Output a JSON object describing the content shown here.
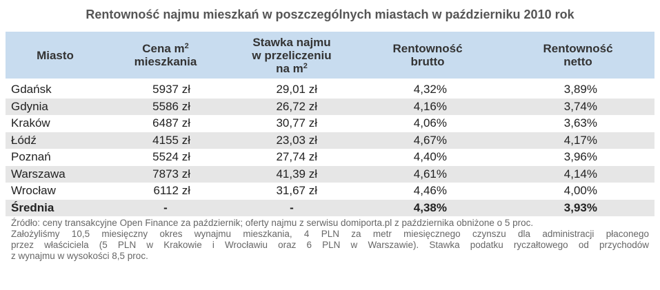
{
  "title": "Rentowność najmu mieszkań w poszczególnych miastach w październiku 2010 rok",
  "table": {
    "header": [
      [
        {
          "text": "Miasto"
        }
      ],
      [
        {
          "text": "Cena m",
          "sup": "2"
        },
        {
          "text": "mieszkania"
        }
      ],
      [
        {
          "text": "Stawka najmu"
        },
        {
          "text": "w przeliczeniu"
        },
        {
          "text": "na m",
          "sup": "2"
        }
      ],
      [
        {
          "text": "Rentowność"
        },
        {
          "text": "brutto"
        }
      ],
      [
        {
          "text": "Rentowność"
        },
        {
          "text": "netto"
        }
      ]
    ],
    "rows": [
      [
        "Gdańsk",
        "5937 zł",
        "29,01 zł",
        "4,32%",
        "3,89%"
      ],
      [
        "Gdynia",
        "5586 zł",
        "26,72 zł",
        "4,16%",
        "3,74%"
      ],
      [
        "Kraków",
        "6487 zł",
        "30,77 zł",
        "4,06%",
        "3,63%"
      ],
      [
        "Łódź",
        "4155 zł",
        "23,03 zł",
        "4,67%",
        "4,17%"
      ],
      [
        "Poznań",
        "5524 zł",
        "27,74 zł",
        "4,40%",
        "3,96%"
      ],
      [
        "Warszawa",
        "7873 zł",
        "41,39 zł",
        "4,61%",
        "4,14%"
      ],
      [
        "Wrocław",
        "6112 zł",
        "31,67 zł",
        "4,46%",
        "4,00%"
      ]
    ],
    "footer": [
      "Średnia",
      "-",
      "-",
      "4,38%",
      "3,93%"
    ]
  },
  "note": [
    "Źródło: ceny transakcyjne Open Finance za październik; oferty najmu z serwisu domiporta.pl z października obniżone o 5 proc.",
    "Założyliśmy 10,5 miesięczny okres wynajmu mieszkania, 4 PLN za metr miesięcznego czynszu dla administracji płaconego",
    "przez właściciela (5 PLN w Krakowie i Wrocławiu oraz 6 PLN w Warszawie). Stawka podatku ryczałtowego od przychodów",
    "z wynajmu w wysokości 8,5 proc."
  ]
}
